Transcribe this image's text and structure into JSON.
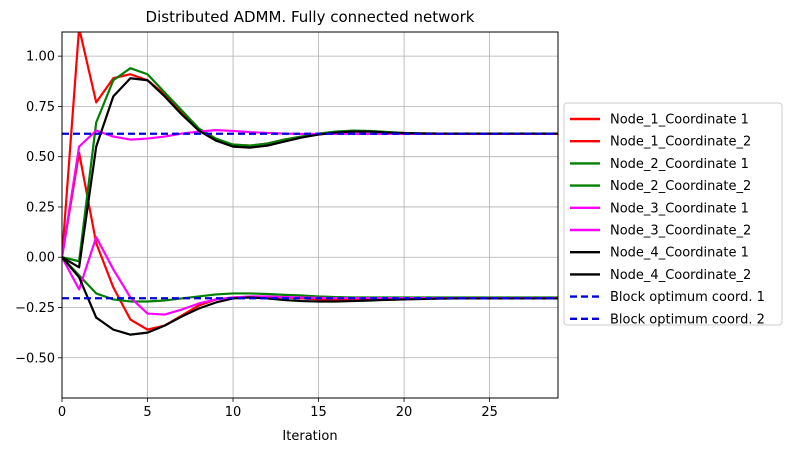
{
  "chart_data": {
    "type": "line",
    "title": "Distributed ADMM. Fully connected network",
    "xlabel": "Iteration",
    "ylabel": "",
    "xlim": [
      0,
      29
    ],
    "ylim": [
      -0.7,
      1.12
    ],
    "xticks": [
      0,
      5,
      10,
      15,
      20,
      25
    ],
    "yticks": [
      -0.5,
      -0.25,
      0.0,
      0.25,
      0.5,
      0.75,
      1.0
    ],
    "ytick_labels": [
      "−0.50",
      "−0.25",
      "0.00",
      "0.25",
      "0.50",
      "0.75",
      "1.00"
    ],
    "grid": true,
    "legend_position": "outside-right",
    "x": [
      0,
      1,
      2,
      3,
      4,
      5,
      6,
      7,
      8,
      9,
      10,
      11,
      12,
      13,
      14,
      15,
      16,
      17,
      18,
      19,
      20,
      21,
      22,
      23,
      24,
      25,
      26,
      27,
      28,
      29
    ],
    "series": [
      {
        "name": "Node_1_Coordinate 1",
        "color": "#ff0000",
        "dash": "solid",
        "values": [
          0.0,
          1.14,
          0.77,
          0.89,
          0.91,
          0.88,
          0.81,
          0.72,
          0.63,
          0.58,
          0.56,
          0.555,
          0.565,
          0.585,
          0.6,
          0.61,
          0.62,
          0.625,
          0.625,
          0.62,
          0.618,
          0.616,
          0.615,
          0.615,
          0.615,
          0.615,
          0.615,
          0.615,
          0.615,
          0.615
        ]
      },
      {
        "name": "Node_1_Coordinate_2",
        "color": "#ff0000",
        "dash": "solid",
        "values": [
          0.0,
          0.52,
          0.07,
          -0.15,
          -0.31,
          -0.36,
          -0.34,
          -0.29,
          -0.24,
          -0.21,
          -0.2,
          -0.2,
          -0.2,
          -0.2,
          -0.205,
          -0.21,
          -0.21,
          -0.21,
          -0.205,
          -0.205,
          -0.205,
          -0.205,
          -0.205,
          -0.205,
          -0.205,
          -0.205,
          -0.205,
          -0.205,
          -0.205,
          -0.205
        ]
      },
      {
        "name": "Node_2_Coordinate 1",
        "color": "#008000",
        "dash": "solid",
        "values": [
          0.0,
          -0.02,
          0.67,
          0.88,
          0.94,
          0.91,
          0.82,
          0.73,
          0.64,
          0.59,
          0.56,
          0.555,
          0.565,
          0.585,
          0.6,
          0.615,
          0.625,
          0.63,
          0.628,
          0.623,
          0.618,
          0.616,
          0.615,
          0.615,
          0.615,
          0.615,
          0.615,
          0.615,
          0.615,
          0.615
        ]
      },
      {
        "name": "Node_2_Coordinate_2",
        "color": "#008000",
        "dash": "solid",
        "values": [
          0.0,
          -0.09,
          -0.18,
          -0.21,
          -0.22,
          -0.22,
          -0.215,
          -0.205,
          -0.195,
          -0.185,
          -0.18,
          -0.18,
          -0.183,
          -0.187,
          -0.19,
          -0.195,
          -0.198,
          -0.2,
          -0.2,
          -0.2,
          -0.2,
          -0.2,
          -0.2,
          -0.2,
          -0.2,
          -0.2,
          -0.2,
          -0.2,
          -0.2,
          -0.2
        ]
      },
      {
        "name": "Node_3_Coordinate 1",
        "color": "#ff00ff",
        "dash": "solid",
        "values": [
          0.0,
          0.55,
          0.63,
          0.6,
          0.585,
          0.59,
          0.6,
          0.615,
          0.625,
          0.632,
          0.628,
          0.622,
          0.618,
          0.615,
          0.613,
          0.613,
          0.613,
          0.613,
          0.613,
          0.613,
          0.613,
          0.613,
          0.613,
          0.613,
          0.613,
          0.613,
          0.613,
          0.613,
          0.613,
          0.613
        ]
      },
      {
        "name": "Node_3_Coordinate_2",
        "color": "#ff00ff",
        "dash": "solid",
        "values": [
          0.0,
          -0.16,
          0.1,
          -0.06,
          -0.2,
          -0.28,
          -0.285,
          -0.26,
          -0.23,
          -0.21,
          -0.2,
          -0.195,
          -0.195,
          -0.198,
          -0.2,
          -0.202,
          -0.203,
          -0.203,
          -0.203,
          -0.203,
          -0.203,
          -0.203,
          -0.203,
          -0.203,
          -0.203,
          -0.203,
          -0.203,
          -0.203,
          -0.203,
          -0.203
        ]
      },
      {
        "name": "Node_4_Coordinate 1",
        "color": "#000000",
        "dash": "solid",
        "values": [
          0.0,
          -0.05,
          0.55,
          0.8,
          0.89,
          0.88,
          0.8,
          0.71,
          0.63,
          0.58,
          0.55,
          0.545,
          0.555,
          0.575,
          0.595,
          0.61,
          0.62,
          0.625,
          0.625,
          0.62,
          0.617,
          0.615,
          0.615,
          0.615,
          0.615,
          0.615,
          0.615,
          0.615,
          0.615,
          0.615
        ]
      },
      {
        "name": "Node_4_Coordinate_2",
        "color": "#000000",
        "dash": "solid",
        "values": [
          0.0,
          -0.1,
          -0.3,
          -0.36,
          -0.385,
          -0.375,
          -0.34,
          -0.295,
          -0.255,
          -0.225,
          -0.205,
          -0.2,
          -0.205,
          -0.213,
          -0.218,
          -0.22,
          -0.22,
          -0.218,
          -0.215,
          -0.212,
          -0.21,
          -0.208,
          -0.206,
          -0.205,
          -0.205,
          -0.205,
          -0.205,
          -0.205,
          -0.205,
          -0.205
        ]
      },
      {
        "name": "Block optimum coord. 1",
        "color": "#0000dd",
        "dash": "dashed",
        "values": [
          0.614,
          0.614,
          0.614,
          0.614,
          0.614,
          0.614,
          0.614,
          0.614,
          0.614,
          0.614,
          0.614,
          0.614,
          0.614,
          0.614,
          0.614,
          0.614,
          0.614,
          0.614,
          0.614,
          0.614,
          0.614,
          0.614,
          0.614,
          0.614,
          0.614,
          0.614,
          0.614,
          0.614,
          0.614,
          0.614
        ]
      },
      {
        "name": "Block optimum coord. 2",
        "color": "#0000dd",
        "dash": "dashed",
        "values": [
          -0.204,
          -0.204,
          -0.204,
          -0.204,
          -0.204,
          -0.204,
          -0.204,
          -0.204,
          -0.204,
          -0.204,
          -0.204,
          -0.204,
          -0.204,
          -0.204,
          -0.204,
          -0.204,
          -0.204,
          -0.204,
          -0.204,
          -0.204,
          -0.204,
          -0.204,
          -0.204,
          -0.204,
          -0.204,
          -0.204,
          -0.204,
          -0.204,
          -0.204,
          -0.204
        ]
      }
    ]
  }
}
